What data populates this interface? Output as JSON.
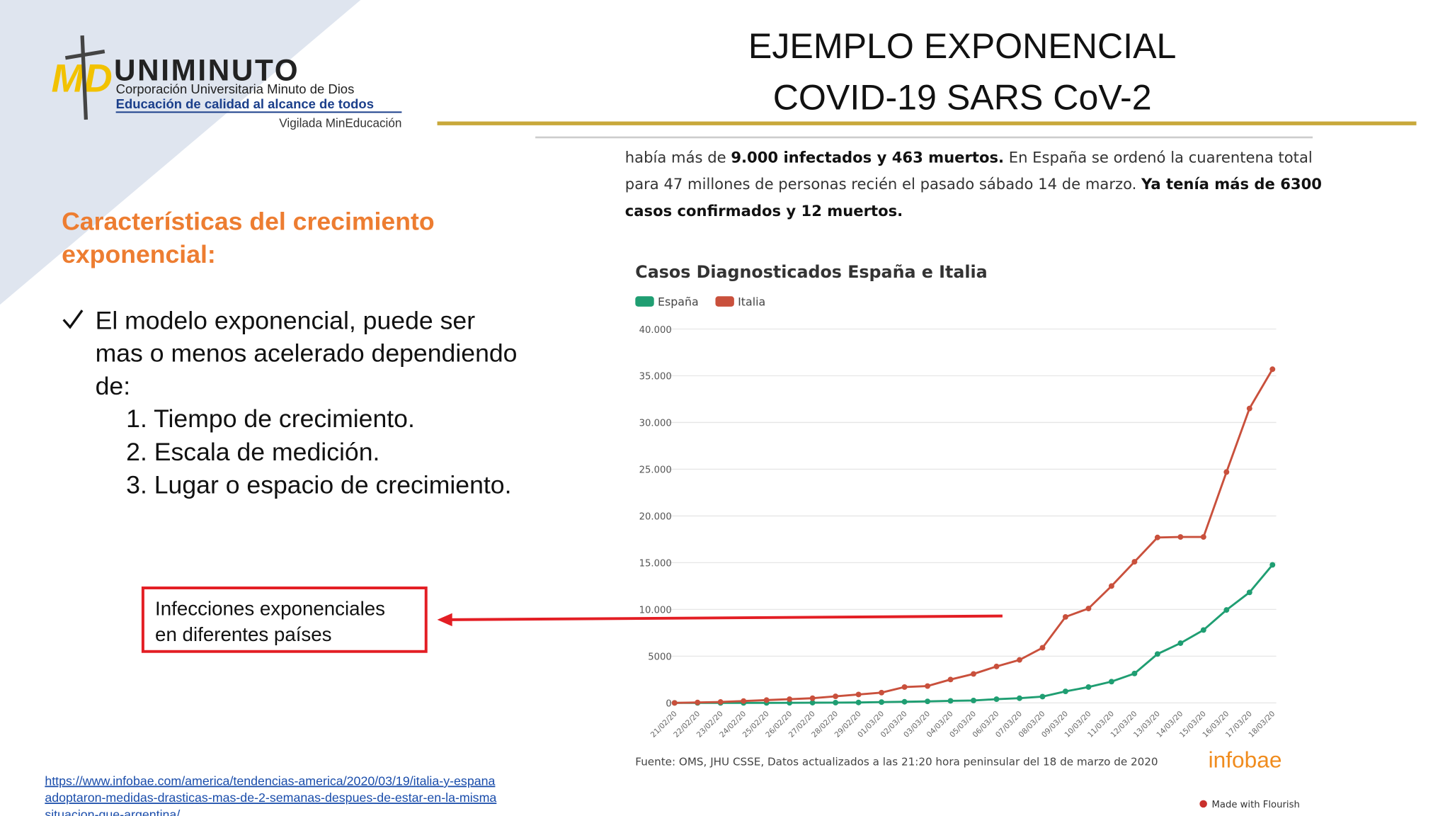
{
  "header": {
    "title_lines": [
      "EJEMPLO EXPONENCIAL",
      "COVID-19   SARS CoV-2"
    ]
  },
  "logo": {
    "name": "UNIMINUTO",
    "line1": "Corporación Universitaria Minuto de Dios",
    "line2": "Educación de calidad al alcance de todos",
    "line3": "Vigilada MinEducación"
  },
  "heading": [
    "Características del crecimiento",
    "exponencial:"
  ],
  "bullet": {
    "lines": [
      "El modelo exponencial, puede ser",
      "mas o menos acelerado dependiendo",
      "de:"
    ],
    "items": [
      "1. Tiempo de crecimiento.",
      "2. Escala de medición.",
      "3. Lugar o espacio de crecimiento."
    ]
  },
  "callout": [
    "Infecciones exponenciales",
    "en diferentes países"
  ],
  "article": [
    [
      {
        "text": "había más de ",
        "bold": false
      },
      {
        "text": "9.000 infectados y 463 muertos.",
        "bold": true
      },
      {
        "text": " En España se ordenó la cuarentena total",
        "bold": false
      }
    ],
    [
      {
        "text": "para 47 millones de personas recién el pasado sábado 14 de marzo. ",
        "bold": false
      },
      {
        "text": "Ya tenía más de 6300",
        "bold": true
      }
    ],
    [
      {
        "text": "casos confirmados y 12 muertos.",
        "bold": true
      }
    ]
  ],
  "chart_data": {
    "type": "line",
    "title": "Casos Diagnosticados España e Italia",
    "categories": [
      "21/02/20",
      "22/02/20",
      "23/02/20",
      "24/02/20",
      "25/02/20",
      "26/02/20",
      "27/02/20",
      "28/02/20",
      "29/02/20",
      "01/03/20",
      "02/03/20",
      "03/03/20",
      "04/03/20",
      "05/03/20",
      "06/03/20",
      "07/03/20",
      "08/03/20",
      "09/03/20",
      "10/03/20",
      "11/03/20",
      "12/03/20",
      "13/03/20",
      "14/03/20",
      "15/03/20",
      "16/03/20",
      "17/03/20",
      "18/03/20"
    ],
    "series": [
      {
        "name": "España",
        "color": "#1f9e72",
        "values": [
          2,
          2,
          2,
          2,
          2,
          12,
          25,
          32,
          45,
          84,
          120,
          165,
          222,
          259,
          400,
          500,
          673,
          1231,
          1695,
          2277,
          3146,
          5232,
          6391,
          7798,
          9942,
          11826,
          14769
        ]
      },
      {
        "name": "Italia",
        "color": "#c9503c",
        "values": [
          0,
          50,
          100,
          200,
          300,
          400,
          500,
          700,
          900,
          1100,
          1700,
          1800,
          2500,
          3100,
          3900,
          4600,
          5900,
          9200,
          10100,
          12500,
          15100,
          17700,
          17750,
          17750,
          24700,
          31500,
          35700
        ]
      }
    ],
    "ylim": [
      0,
      40000
    ],
    "yticks": [
      0,
      5000,
      {
        "value": 10000,
        "label": "10.000"
      },
      {
        "value": 15000,
        "label": "15.000"
      },
      {
        "value": 20000,
        "label": "20.000"
      },
      {
        "value": 25000,
        "label": "25.000"
      },
      {
        "value": 30000,
        "label": "30.000"
      },
      {
        "value": 35000,
        "label": "35.000"
      },
      {
        "value": 40000,
        "label": "40.000"
      }
    ],
    "grid": true,
    "source": "Fuente: OMS, JHU CSSE, Datos actualizados a las 21:20 hora peninsular del 18 de marzo de 2020",
    "brand": "infobae",
    "credit": "Made with Flourish"
  },
  "link": [
    "https://www.infobae.com/america/tendencias-america/2020/03/19/italia-y-espana",
    "adoptaron-medidas-drasticas-mas-de-2-semanas-despues-de-estar-en-la-misma",
    "situacion-que-argentina/"
  ]
}
